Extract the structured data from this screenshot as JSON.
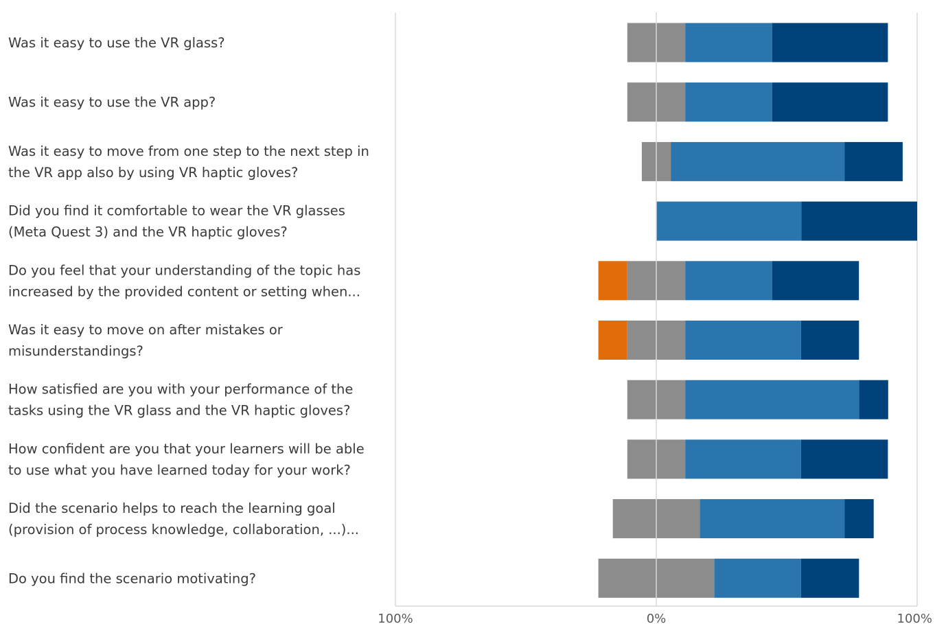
{
  "chart_data": {
    "type": "bar",
    "subtype": "diverging-stacked-horizontal",
    "title": "",
    "xlabel": "",
    "ylabel": "",
    "xlim": [
      -100,
      100
    ],
    "x_tick_labels": [
      "100%",
      "0%",
      "100%"
    ],
    "grid": false,
    "legend": "none",
    "categories": [
      [
        "Was it easy to use the VR glass?"
      ],
      [
        "Was it easy to use the VR app?"
      ],
      [
        "Was it easy to move from one step to the next step in",
        "the VR app also by using VR haptic gloves?"
      ],
      [
        "Did you find it comfortable to wear the VR glasses",
        "(Meta Quest 3) and the VR haptic gloves?"
      ],
      [
        "Do you feel that your understanding of the topic  has",
        "increased by the provided content or setting when..."
      ],
      [
        "Was it easy to move on after mistakes or",
        "misunderstandings?"
      ],
      [
        "How satisfied are you with your performance of the",
        "tasks using the VR glass and the VR haptic gloves?"
      ],
      [
        "How confident are you that your learners will be able",
        "to use what you have learned today for your work?"
      ],
      [
        "Did the scenario helps to reach the learning goal",
        "(provision of process knowledge, collaboration, ...)..."
      ],
      [
        "Do you find the scenario motivating?"
      ]
    ],
    "series": [
      {
        "key": "negative",
        "color": "#E36C0A",
        "side": "negative",
        "values": [
          0,
          0,
          0,
          0,
          11.1,
          11.1,
          0,
          0,
          0,
          0
        ]
      },
      {
        "key": "neutral",
        "color": "#8C8C8C",
        "side": "neutral",
        "values": [
          22.2,
          22.2,
          11.1,
          0,
          22.2,
          22.2,
          22.2,
          22.2,
          33.3,
          44.4
        ]
      },
      {
        "key": "positive",
        "color": "#2A75AE",
        "side": "positive",
        "values": [
          33.3,
          33.3,
          66.7,
          55.6,
          33.3,
          44.4,
          66.7,
          44.4,
          55.6,
          33.3
        ]
      },
      {
        "key": "very-positive",
        "color": "#00427A",
        "side": "positive",
        "values": [
          44.4,
          44.4,
          22.2,
          44.4,
          33.3,
          22.2,
          11.1,
          33.3,
          11.1,
          22.2
        ]
      }
    ],
    "axis_color": "#D9D9D9"
  }
}
